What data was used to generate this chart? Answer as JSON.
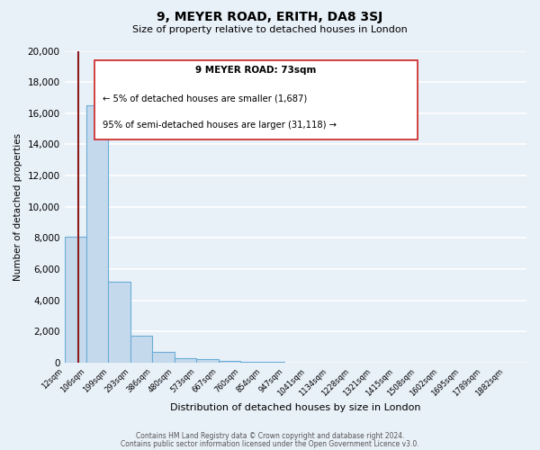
{
  "title": "9, MEYER ROAD, ERITH, DA8 3SJ",
  "subtitle": "Size of property relative to detached houses in London",
  "xlabel": "Distribution of detached houses by size in London",
  "ylabel": "Number of detached properties",
  "bin_labels": [
    "12sqm",
    "106sqm",
    "199sqm",
    "293sqm",
    "386sqm",
    "480sqm",
    "573sqm",
    "667sqm",
    "760sqm",
    "854sqm",
    "947sqm",
    "1041sqm",
    "1134sqm",
    "1228sqm",
    "1321sqm",
    "1415sqm",
    "1508sqm",
    "1602sqm",
    "1695sqm",
    "1789sqm",
    "1882sqm"
  ],
  "bar_values": [
    8100,
    16500,
    5200,
    1750,
    700,
    270,
    210,
    130,
    70,
    50,
    30,
    20,
    15,
    10,
    8,
    6,
    5,
    5,
    4,
    3,
    3
  ],
  "bar_color": "#c5d9ed",
  "bar_edge_color": "#6aadd5",
  "property_sqm": 73,
  "annotation_text_line1": "9 MEYER ROAD: 73sqm",
  "annotation_text_line2": "← 5% of detached houses are smaller (1,687)",
  "annotation_text_line3": "95% of semi-detached houses are larger (31,118) →",
  "ylim": [
    0,
    20000
  ],
  "yticks": [
    0,
    2000,
    4000,
    6000,
    8000,
    10000,
    12000,
    14000,
    16000,
    18000,
    20000
  ],
  "footer_line1": "Contains HM Land Registry data © Crown copyright and database right 2024.",
  "footer_line2": "Contains public sector information licensed under the Open Government Licence v3.0.",
  "bg_color": "#e8f0f8",
  "plot_bg_color": "#e8f0f8",
  "grid_color": "#ffffff"
}
